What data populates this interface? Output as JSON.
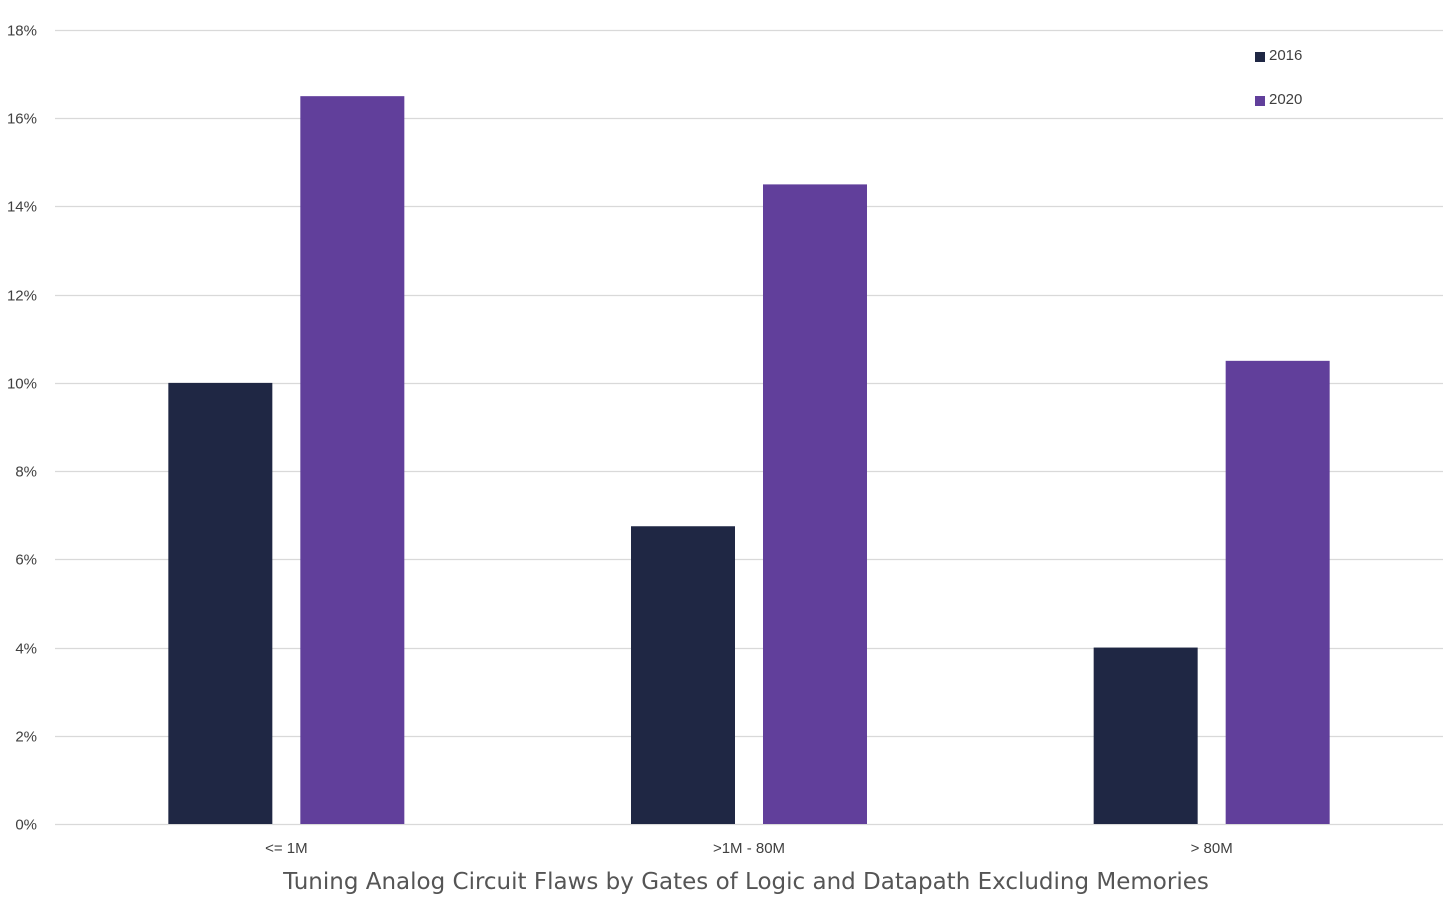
{
  "chart_data": {
    "type": "bar",
    "title": "",
    "xlabel": "Tuning Analog Circuit Flaws by Gates of Logic and Datapath Excluding Memories",
    "ylabel": "",
    "categories": [
      "<= 1M",
      ">1M - 80M",
      "> 80M"
    ],
    "series": [
      {
        "name": "2016",
        "values": [
          10.0,
          6.75,
          4.0
        ],
        "color": "#1f2744"
      },
      {
        "name": "2020",
        "values": [
          16.5,
          14.5,
          10.5
        ],
        "color": "#613f9b"
      }
    ],
    "ylim": [
      0,
      18
    ],
    "yticks": [
      0,
      2,
      4,
      6,
      8,
      10,
      12,
      14,
      16,
      18
    ],
    "ytick_labels": [
      "0%",
      "2%",
      "4%",
      "6%",
      "8%",
      "10%",
      "12%",
      "14%",
      "16%",
      "18%"
    ],
    "grid": true,
    "gridline_color": "#d9d9d9",
    "legend_position": "top-right"
  }
}
